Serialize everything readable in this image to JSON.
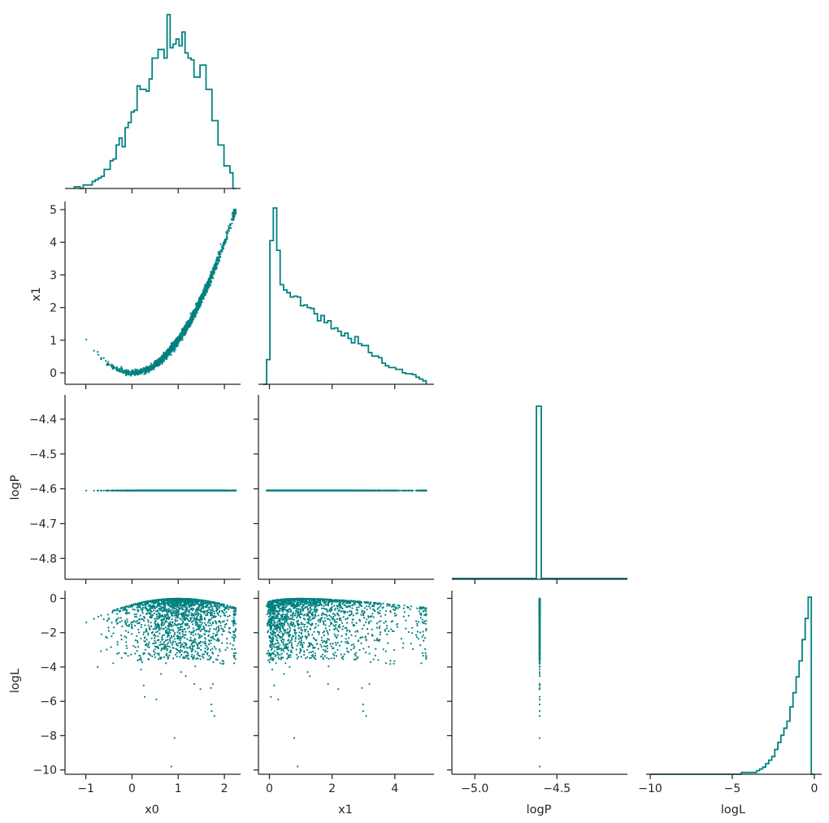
{
  "chart_data": {
    "type": "corner-plot",
    "color": "#008080",
    "axis_color": "#262626",
    "variables": [
      "x0",
      "x1",
      "logP",
      "logL"
    ],
    "ranges": {
      "x0": [
        -1.45,
        2.35
      ],
      "x1": [
        -0.35,
        5.25
      ],
      "logP": [
        -5.14,
        -4.07
      ],
      "logL": [
        -10.25,
        0.45
      ]
    },
    "diag_ranges": {
      "logP": [
        -5.14,
        -4.07
      ]
    },
    "offdiag_ylims": {
      "logP": [
        -4.86,
        -4.33
      ]
    },
    "ticks": {
      "x0": {
        "values": [
          -1,
          0,
          1,
          2
        ],
        "labels": [
          "−1",
          "0",
          "1",
          "2"
        ]
      },
      "x1": {
        "values": [
          0,
          2,
          4
        ],
        "labels": [
          "0",
          "2",
          "4"
        ]
      },
      "x1_y": {
        "values": [
          0,
          1,
          2,
          3,
          4,
          5
        ],
        "labels": [
          "0",
          "1",
          "2",
          "3",
          "4",
          "5"
        ]
      },
      "logP_x": {
        "values": [
          -5.0,
          -4.5
        ],
        "labels": [
          "−5.0",
          "−4.5"
        ]
      },
      "logP_y": {
        "values": [
          -4.8,
          -4.7,
          -4.6,
          -4.5,
          -4.4
        ],
        "labels": [
          "−4.8",
          "−4.7",
          "−4.6",
          "−4.5",
          "−4.4"
        ]
      },
      "logL_x": {
        "values": [
          -10,
          -5,
          0
        ],
        "labels": [
          "−10",
          "−5",
          "0"
        ]
      },
      "logL_y": {
        "values": [
          -10,
          -8,
          -6,
          -4,
          -2,
          0
        ],
        "labels": [
          "−10",
          "−8",
          "−6",
          "−4",
          "−2",
          "0"
        ]
      }
    },
    "axis_labels": {
      "x0": "x0",
      "x1": "x1",
      "logP": "logP",
      "logL": "logL"
    },
    "histograms": {
      "x0": {
        "bin_edges": [
          -1.25,
          2.25
        ],
        "counts": [
          1,
          1,
          0,
          2,
          2,
          2,
          4,
          5,
          6,
          7,
          11,
          11,
          16,
          17,
          25,
          29,
          24,
          35,
          38,
          44,
          45,
          59,
          57,
          57,
          56,
          63,
          75,
          75,
          80,
          80,
          75,
          100,
          81,
          83,
          86,
          82,
          90,
          78,
          75,
          74,
          64,
          64,
          71,
          71,
          57,
          57,
          39,
          39,
          25,
          25,
          13,
          13,
          9,
          0
        ]
      },
      "x1": {
        "bin_edges": [
          -0.2,
          5.0
        ],
        "counts": [
          0,
          28,
          163,
          200,
          152,
          113,
          107,
          104,
          99,
          100,
          99,
          89,
          90,
          87,
          86,
          80,
          72,
          78,
          70,
          72,
          63,
          64,
          60,
          55,
          58,
          52,
          47,
          54,
          46,
          44,
          44,
          36,
          32,
          32,
          30,
          24,
          21,
          19,
          19,
          17,
          17,
          13,
          12,
          12,
          11,
          8,
          6,
          4
        ]
      },
      "logP": {
        "bin_edges": [
          -4.625,
          -4.595
        ],
        "counts": [
          1
        ]
      },
      "logL": {
        "bin_edges": [
          -10.0,
          0.0
        ],
        "counts": [
          0,
          0,
          0,
          0,
          0,
          0,
          0,
          0,
          0,
          0,
          0,
          0,
          0,
          0,
          0,
          0,
          0,
          0,
          0,
          0,
          0,
          0,
          0,
          0,
          0,
          0,
          0,
          0,
          0,
          0,
          1,
          1,
          1,
          1,
          1,
          2,
          3,
          4,
          6,
          8,
          10,
          14,
          18,
          22,
          26,
          30,
          38,
          46,
          55,
          64,
          76,
          88,
          100,
          0
        ]
      }
    },
    "scatter": {
      "n_points": 2000,
      "relation_x1_vs_x0": "x1 ≈ x0² with spread; x0 ∈ [-1.3, 2.25], x1 ∈ [-0.2, 5.0]",
      "logP_constant": -4.605,
      "logL_max": 0.0,
      "logL_min": -9.8
    }
  }
}
